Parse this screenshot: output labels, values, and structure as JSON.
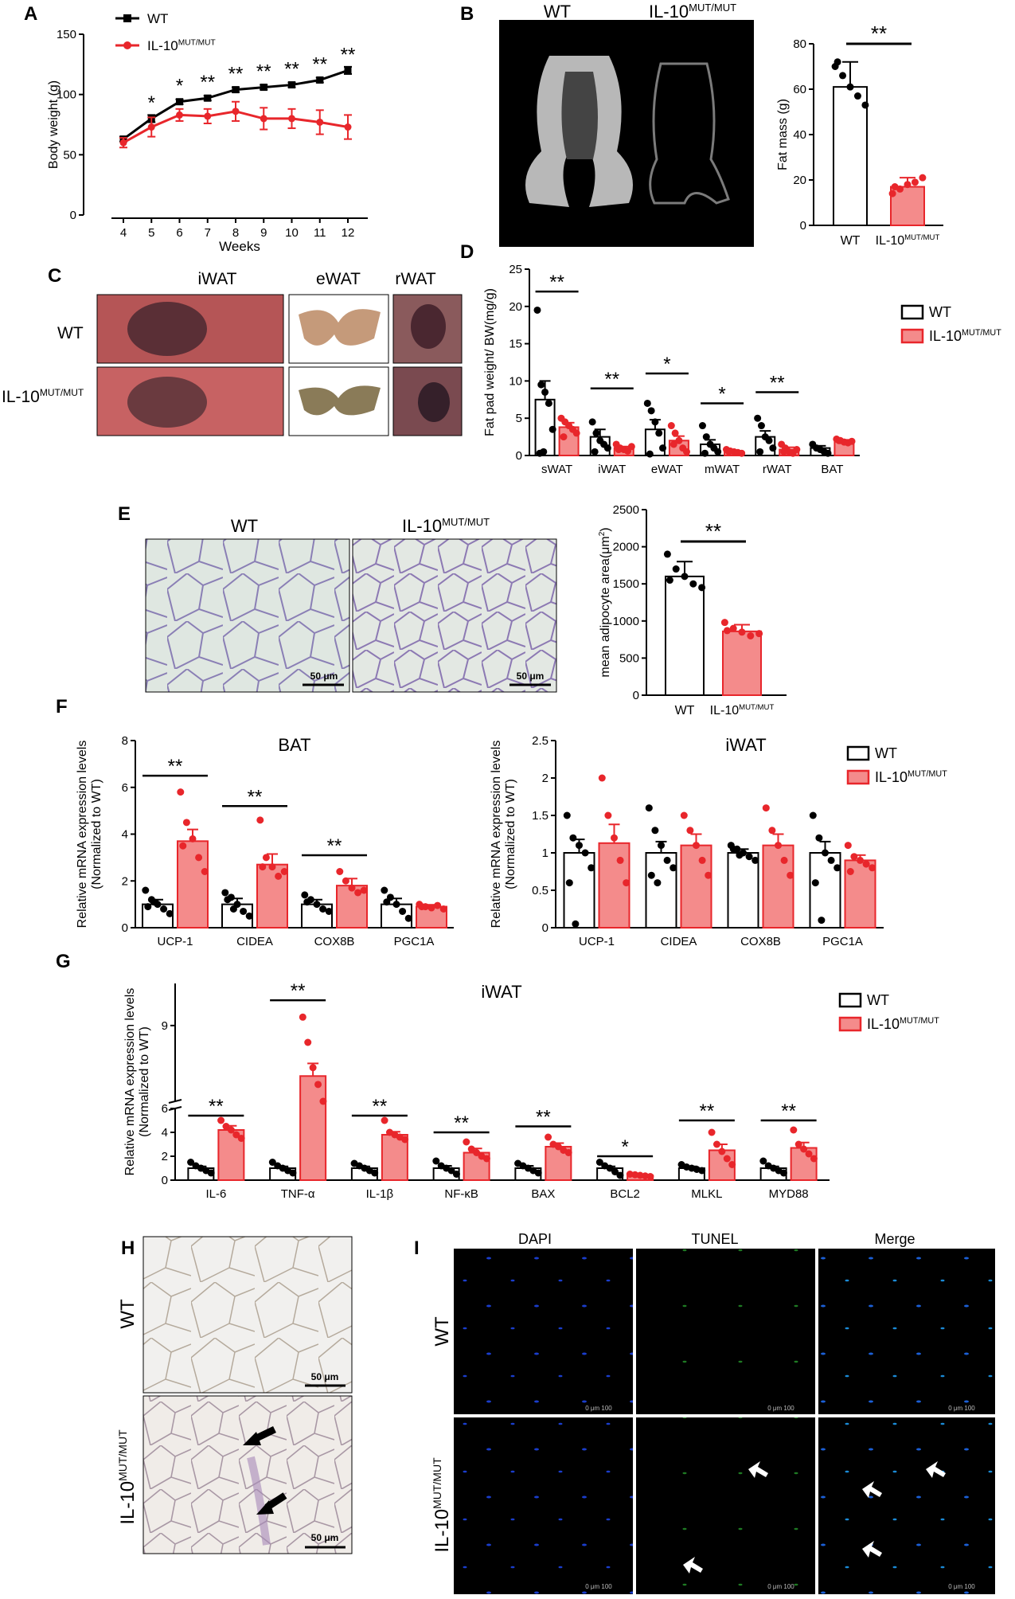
{
  "colors": {
    "wt": "#000000",
    "mut": "#e8262b",
    "mut_fill": "#f48b8b",
    "dot_mut": "#e8262b"
  },
  "panel_labels": {
    "A": "A",
    "B": "B",
    "C": "C",
    "D": "D",
    "E": "E",
    "F": "F",
    "G": "G",
    "H": "H",
    "I": "I"
  },
  "common": {
    "wt": "WT",
    "mut": "IL-10",
    "sup": "MUT/MUT",
    "scale_bar": "50 μm"
  },
  "panel_b": {
    "img_wt": "WT",
    "img_mut_base": "IL-10",
    "img_mut_sup": "MUT/MUT"
  },
  "panel_c": {
    "col_labels": [
      "iWAT",
      "eWAT",
      "rWAT"
    ],
    "row_labels": [
      "WT",
      "IL-10"
    ],
    "row_sup": "MUT/MUT"
  },
  "panel_e": {
    "img_wt": "WT",
    "img_mut_base": "IL-10",
    "img_mut_sup": "MUT/MUT"
  },
  "panel_i": {
    "col_labels": [
      "DAPI",
      "TUNEL",
      "Merge"
    ],
    "scale_text": "0     μm     100"
  },
  "chart_data": [
    {
      "id": "A",
      "type": "line",
      "x": [
        4,
        5,
        6,
        7,
        8,
        9,
        10,
        11,
        12
      ],
      "xlabel": "Weeks",
      "ylabel": "Body weight (g)",
      "ylim": [
        0,
        150
      ],
      "yticks": [
        0,
        50,
        100,
        150
      ],
      "legend": "top-left",
      "series": [
        {
          "name": "WT",
          "values": [
            63,
            80,
            94,
            97,
            104,
            106,
            108,
            112,
            120
          ],
          "err": [
            2,
            3,
            2,
            2,
            2,
            2,
            2,
            2,
            3
          ]
        },
        {
          "name": "IL-10",
          "name_sup": "MUT/MUT",
          "values": [
            60,
            73,
            83,
            82,
            86,
            80,
            80,
            77,
            73
          ],
          "err": [
            4,
            8,
            5,
            6,
            8,
            9,
            8,
            10,
            10
          ]
        }
      ],
      "significance": [
        "*",
        "*",
        "**",
        "**",
        "**",
        "**",
        "**",
        "**"
      ]
    },
    {
      "id": "B",
      "type": "bar",
      "categories": [
        "WT",
        "IL-10"
      ],
      "category_sup": [
        "",
        "MUT/MUT"
      ],
      "values": [
        61,
        17
      ],
      "err": [
        11,
        4
      ],
      "points": [
        [
          70,
          66,
          61,
          57,
          53,
          72
        ],
        [
          14,
          16,
          18,
          19,
          21,
          17
        ]
      ],
      "ylabel": "Fat mass (g)",
      "ylim": [
        0,
        80
      ],
      "yticks": [
        0,
        20,
        40,
        60,
        80
      ],
      "significance": [
        "**"
      ]
    },
    {
      "id": "D",
      "type": "bar",
      "categories": [
        "sWAT",
        "iWAT",
        "eWAT",
        "mWAT",
        "rWAT",
        "BAT"
      ],
      "ylabel": "Fat pad weight/ BW(mg/g)",
      "ylim": [
        0,
        25
      ],
      "yticks": [
        0,
        5,
        10,
        15,
        20,
        25
      ],
      "legend": "right",
      "series": [
        {
          "name": "WT",
          "values": [
            7.5,
            2.5,
            3.5,
            1.5,
            2.5,
            1.0
          ],
          "err": [
            2.5,
            1.0,
            1.3,
            0.6,
            0.8,
            0.3
          ],
          "points": [
            [
              19.5,
              9.5,
              8.5,
              7,
              3.5,
              0.3,
              0.5
            ],
            [
              4.5,
              3,
              2,
              1.5,
              1,
              0.5
            ],
            [
              7,
              6,
              4.5,
              3,
              1,
              0.2
            ],
            [
              4,
              2.5,
              1.5,
              1,
              0.5,
              0.3
            ],
            [
              5,
              4,
              2.5,
              2,
              1,
              0.5
            ],
            [
              1.5,
              1,
              0.8,
              0.5,
              0.3
            ]
          ]
        },
        {
          "name": "IL-10",
          "name_sup": "MUT/MUT",
          "values": [
            3.8,
            1.0,
            2.0,
            0.5,
            0.8,
            1.9
          ],
          "err": [
            0.6,
            0.2,
            0.6,
            0.1,
            0.3,
            0.2
          ],
          "points": [
            [
              5,
              4.5,
              4,
              3.5,
              3,
              2.5
            ],
            [
              1.5,
              1,
              0.8,
              0.6,
              1.2,
              0.8
            ],
            [
              4,
              3,
              2,
              1,
              0.5,
              1.5
            ],
            [
              0.8,
              0.6,
              0.5,
              0.4,
              0.3,
              0.5
            ],
            [
              1.5,
              1,
              0.5,
              0.3,
              0.8,
              0.5
            ],
            [
              2.2,
              2,
              1.8,
              1.7,
              1.9,
              2
            ]
          ]
        }
      ],
      "significance": [
        {
          "cat": 0,
          "text": "**",
          "y": 22
        },
        {
          "cat": 1,
          "text": "**",
          "y": 9
        },
        {
          "cat": 2,
          "text": "*",
          "y": 11
        },
        {
          "cat": 3,
          "text": "*",
          "y": 7
        },
        {
          "cat": 4,
          "text": "**",
          "y": 8.5
        }
      ]
    },
    {
      "id": "E",
      "type": "bar",
      "categories": [
        "WT",
        "IL-10"
      ],
      "category_sup": [
        "",
        "MUT/MUT"
      ],
      "values": [
        1600,
        860
      ],
      "err": [
        200,
        90
      ],
      "points": [
        [
          1900,
          1700,
          1600,
          1500,
          1450,
          1550
        ],
        [
          980,
          900,
          850,
          800,
          830,
          870
        ]
      ],
      "ylabel": "mean adipocyte area(μm",
      "ylabel_sup": "2",
      "ylabel_end": ")",
      "ylim": [
        0,
        2500
      ],
      "yticks": [
        0,
        500,
        1000,
        1500,
        2000,
        2500
      ],
      "significance": [
        "**"
      ]
    },
    {
      "id": "F1",
      "type": "bar",
      "title": "BAT",
      "categories": [
        "UCP-1",
        "CIDEA",
        "COX8B",
        "PGC1A"
      ],
      "ylabel": "Relative mRNA expression levels",
      "ylabel2": "(Normalized to WT)",
      "ylim": [
        0,
        8
      ],
      "yticks": [
        0,
        2,
        4,
        6,
        8
      ],
      "series": [
        {
          "name": "WT",
          "values": [
            1.0,
            1.0,
            1.0,
            1.0
          ],
          "err": [
            0.2,
            0.25,
            0.2,
            0.25
          ],
          "points": [
            [
              1.6,
              1.2,
              1,
              0.8,
              0.6,
              0.9,
              1.1
            ],
            [
              1.5,
              1.3,
              1,
              0.7,
              0.5,
              1.2,
              0.8
            ],
            [
              1.4,
              1.2,
              1,
              0.8,
              0.7,
              1.1
            ],
            [
              1.6,
              1.3,
              1,
              0.7,
              0.4,
              1.1
            ]
          ]
        },
        {
          "name": "IL-10",
          "values": [
            3.7,
            2.7,
            1.8,
            0.9
          ],
          "err": [
            0.5,
            0.45,
            0.3,
            0.08
          ],
          "points": [
            [
              5.8,
              4.5,
              3.8,
              3,
              2.4,
              3.5
            ],
            [
              4.6,
              3,
              2.6,
              2.2,
              2.4,
              2.6
            ],
            [
              2.4,
              2,
              1.7,
              1.5,
              1.6
            ],
            [
              1.0,
              0.9,
              0.85,
              0.95,
              0.8,
              0.9
            ]
          ]
        }
      ],
      "significance": [
        {
          "cat": 0,
          "text": "**",
          "y": 6.5
        },
        {
          "cat": 1,
          "text": "**",
          "y": 5.2
        },
        {
          "cat": 2,
          "text": "**",
          "y": 3.1
        }
      ]
    },
    {
      "id": "F2",
      "type": "bar",
      "title": "iWAT",
      "categories": [
        "UCP-1",
        "CIDEA",
        "COX8B",
        "PGC1A"
      ],
      "ylabel": "Relative mRNA expression levels",
      "ylabel2": "(Normalized to WT)",
      "ylim": [
        0,
        2.5
      ],
      "yticks": [
        0,
        0.5,
        1.0,
        1.5,
        2.0,
        2.5
      ],
      "legend": "top-right",
      "series": [
        {
          "name": "WT",
          "values": [
            1.0,
            1.0,
            1.0,
            1.0
          ],
          "err": [
            0.18,
            0.15,
            0.05,
            0.15
          ],
          "points": [
            [
              1.5,
              1.2,
              1.1,
              1,
              0.8,
              0.6,
              0.05
            ],
            [
              1.6,
              1.3,
              1.1,
              0.9,
              0.8,
              0.7,
              0.6
            ],
            [
              1.1,
              1.05,
              1,
              0.95,
              0.9,
              1.05,
              0.97
            ],
            [
              1.5,
              1.2,
              1,
              0.9,
              0.8,
              0.6,
              0.1
            ]
          ]
        },
        {
          "name": "IL-10",
          "name_sup": "MUT/MUT",
          "values": [
            1.13,
            1.1,
            1.1,
            0.9
          ],
          "err": [
            0.25,
            0.15,
            0.15,
            0.07
          ],
          "points": [
            [
              2.0,
              1.5,
              1.2,
              0.9,
              0.6
            ],
            [
              1.5,
              1.3,
              1.1,
              0.9,
              0.7
            ],
            [
              1.6,
              1.3,
              1.1,
              0.9,
              0.7
            ],
            [
              1.1,
              0.95,
              0.9,
              0.85,
              0.8,
              0.75
            ]
          ]
        }
      ]
    },
    {
      "id": "G",
      "type": "bar",
      "title": "iWAT",
      "categories": [
        "IL-6",
        "TNF-α",
        "IL-1β",
        "NF-κB",
        "BAX",
        "BCL2",
        "MLKL",
        "MYD88"
      ],
      "ylabel": "Relative mRNA expression levels",
      "ylabel2": "(Normalized to WT)",
      "ylim": [
        0,
        10
      ],
      "yticks": [
        0,
        2,
        4,
        6,
        9
      ],
      "axis_break": [
        6,
        7.2
      ],
      "legend": "top-right",
      "series": [
        {
          "name": "WT",
          "values": [
            1.0,
            1.0,
            1.0,
            1.0,
            1.0,
            1.0,
            1.0,
            1.0
          ],
          "err": [
            0.15,
            0.15,
            0.15,
            0.2,
            0.2,
            0.15,
            0.15,
            0.15
          ],
          "points": [
            [
              1.5,
              1.2,
              1,
              0.8,
              0.6
            ],
            [
              1.5,
              1.2,
              1,
              0.8,
              0.6
            ],
            [
              1.4,
              1.2,
              1,
              0.8,
              0.6
            ],
            [
              1.6,
              1.2,
              1,
              0.8,
              0.5
            ],
            [
              1.4,
              1.2,
              1,
              0.8,
              0.6
            ],
            [
              1.5,
              1.2,
              1,
              0.7,
              0.4
            ],
            [
              1.3,
              1.1,
              1,
              0.9,
              0.8
            ],
            [
              1.6,
              1.2,
              1,
              0.8,
              0.6
            ]
          ]
        },
        {
          "name": "IL-10",
          "name_sup": "MUT/MUT",
          "values": [
            4.2,
            7.8,
            3.8,
            2.3,
            2.8,
            0.4,
            2.5,
            2.7
          ],
          "err": [
            0.35,
            0.3,
            0.25,
            0.35,
            0.3,
            0.05,
            0.5,
            0.45
          ],
          "points": [
            [
              5,
              4.5,
              4.2,
              3.8,
              3.5
            ],
            [
              9.2,
              8.6,
              8.0,
              7.6,
              7.2
            ],
            [
              5,
              4,
              3.8,
              3.6,
              3.4
            ],
            [
              3.2,
              2.6,
              2.3,
              2,
              1.8
            ],
            [
              3.6,
              3,
              2.8,
              2.5,
              2.3
            ],
            [
              0.5,
              0.45,
              0.4,
              0.35,
              0.3
            ],
            [
              4,
              3,
              2.4,
              1.8,
              1.3
            ],
            [
              4.2,
              3,
              2.6,
              2.2,
              1.8
            ]
          ]
        }
      ],
      "significance": [
        {
          "cat": 0,
          "text": "**",
          "y": 5.4
        },
        {
          "cat": 1,
          "text": "**",
          "y": 9.6
        },
        {
          "cat": 2,
          "text": "**",
          "y": 5.4
        },
        {
          "cat": 3,
          "text": "**",
          "y": 4.0
        },
        {
          "cat": 4,
          "text": "**",
          "y": 4.5
        },
        {
          "cat": 5,
          "text": "*",
          "y": 2.0
        },
        {
          "cat": 6,
          "text": "**",
          "y": 5.0
        },
        {
          "cat": 7,
          "text": "**",
          "y": 5.0
        }
      ]
    }
  ]
}
